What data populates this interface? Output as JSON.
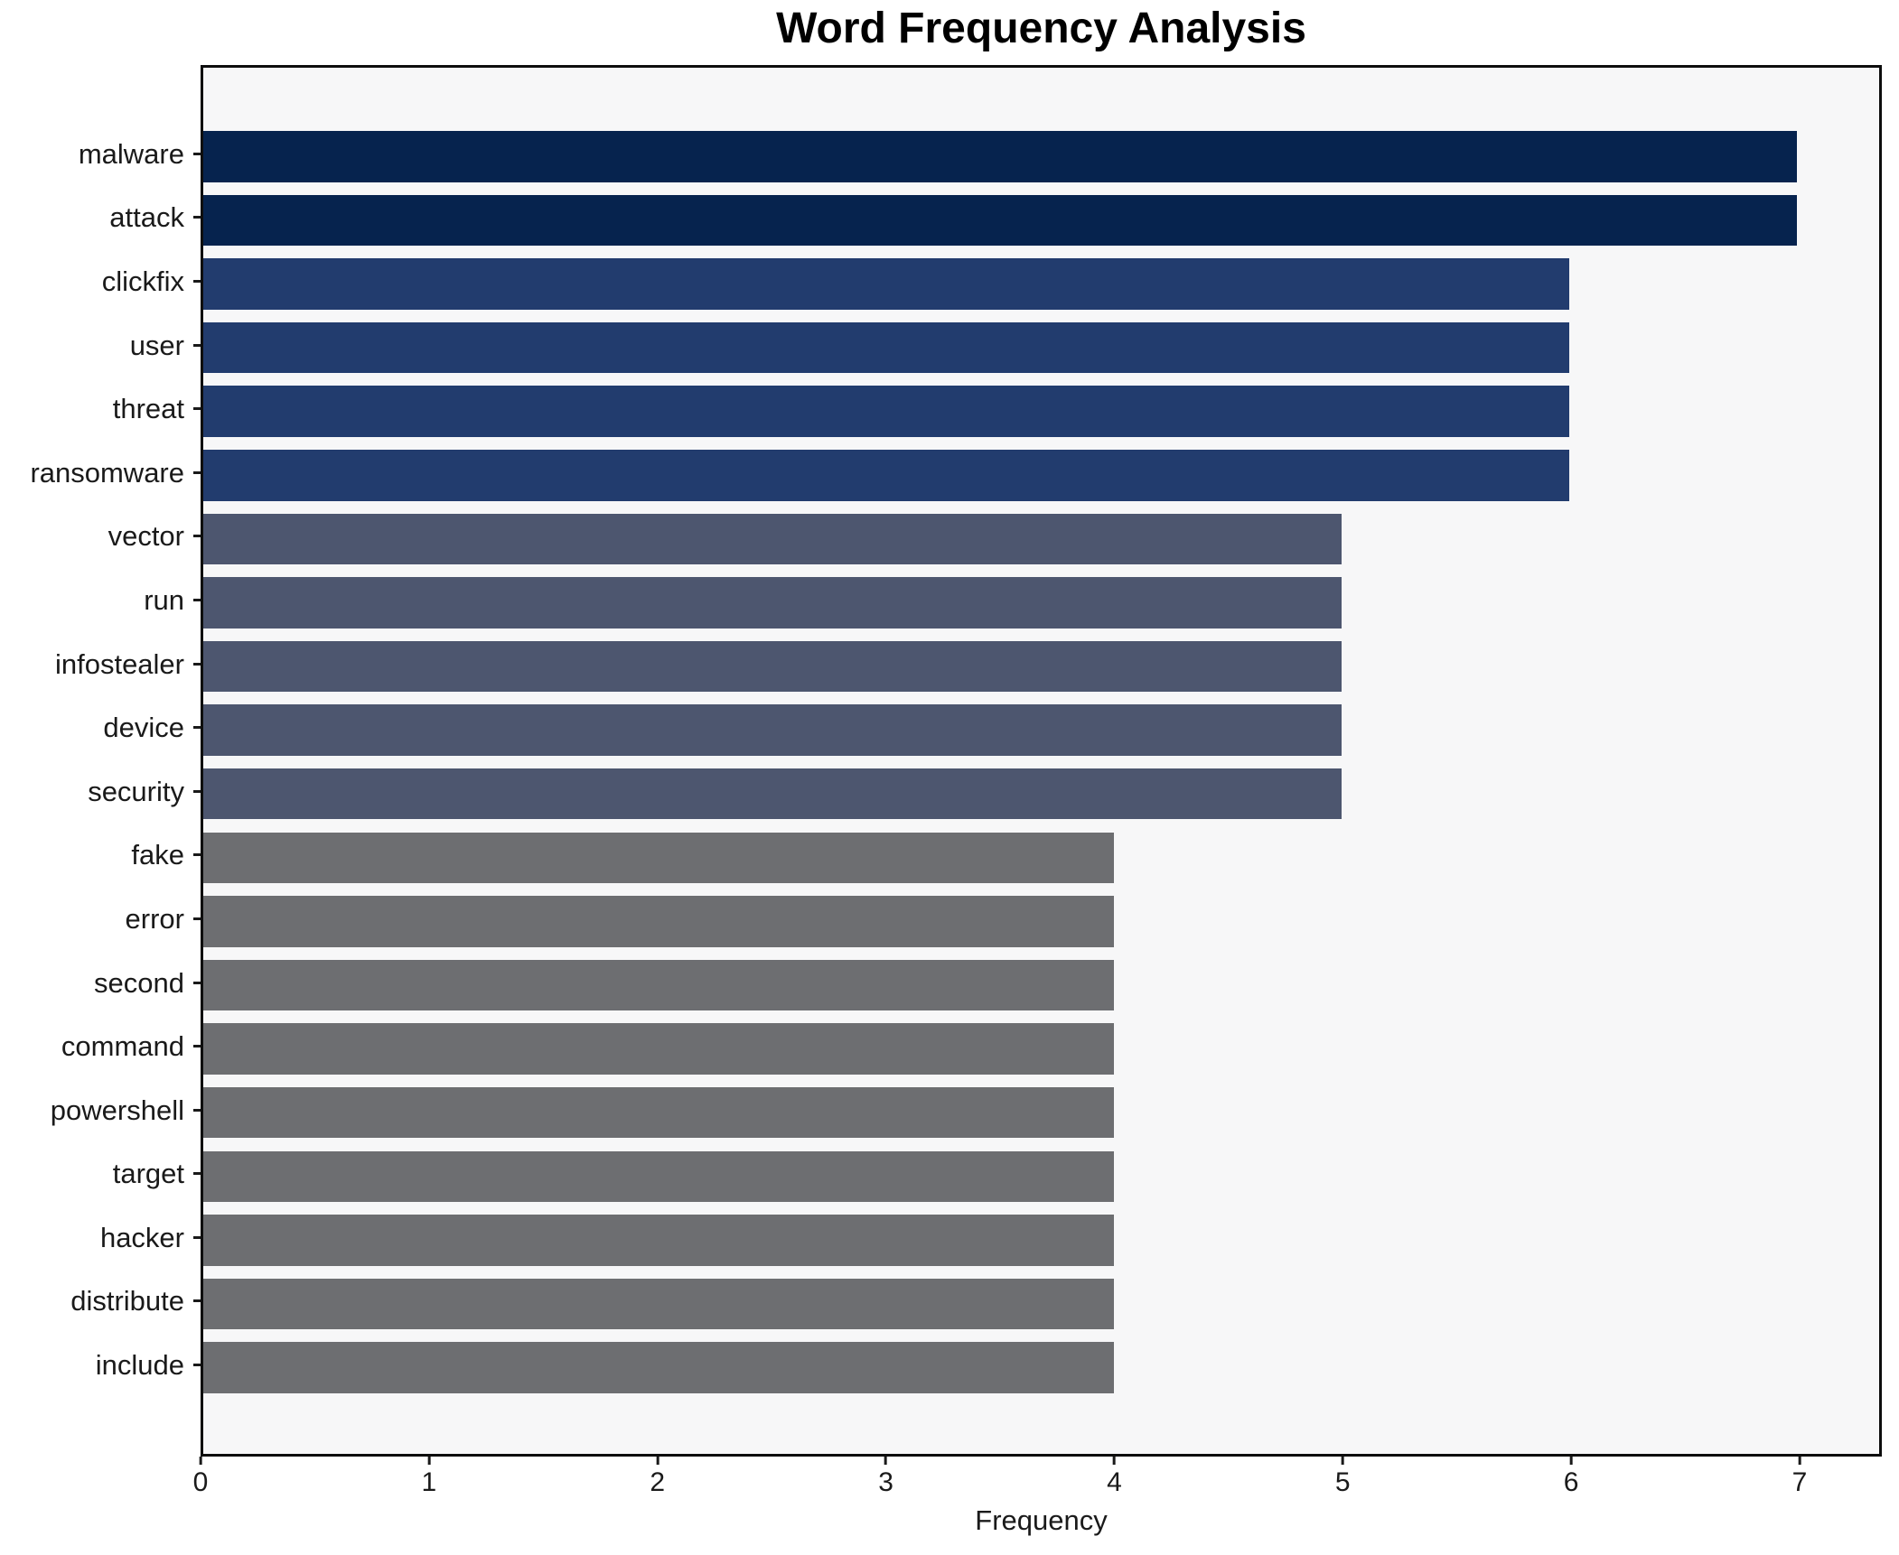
{
  "chart_data": {
    "type": "bar",
    "orientation": "horizontal",
    "title": "Word Frequency Analysis",
    "xlabel": "Frequency",
    "ylabel": "",
    "categories": [
      "malware",
      "attack",
      "clickfix",
      "user",
      "threat",
      "ransomware",
      "vector",
      "run",
      "infostealer",
      "device",
      "security",
      "fake",
      "error",
      "second",
      "command",
      "powershell",
      "target",
      "hacker",
      "distribute",
      "include"
    ],
    "values": [
      7,
      7,
      6,
      6,
      6,
      6,
      5,
      5,
      5,
      5,
      5,
      4,
      4,
      4,
      4,
      4,
      4,
      4,
      4,
      4
    ],
    "xticks": [
      0,
      1,
      2,
      3,
      4,
      5,
      6,
      7
    ],
    "xlim": [
      0,
      7.36
    ],
    "grid": false,
    "legend": null,
    "colors": {
      "bar_by_value": {
        "7": "#06234e",
        "6": "#223c6e",
        "5": "#4d566f",
        "4": "#6d6e71"
      },
      "plot_background": "#f7f7f8",
      "figure_background": "#ffffff",
      "spine": "#0d0d0d",
      "tick": "#1a1a1a",
      "text": "#1a1a1a"
    }
  }
}
